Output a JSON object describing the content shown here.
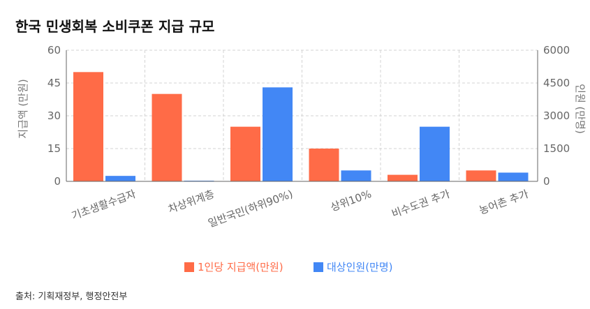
{
  "title": "한국 민생회복 소비쿠폰 지급 규모",
  "source": "출처: 기획재정부, 행정안전부",
  "chart_data": {
    "type": "bar",
    "categories": [
      "기초생활수급자",
      "차상위계층",
      "일반국민(하위90%)",
      "상위10%",
      "비수도권 추가",
      "농어촌 추가"
    ],
    "series": [
      {
        "name": "1인당 지급액(만원)",
        "axis": "left",
        "color": "#ff6b47",
        "values": [
          50,
          40,
          25,
          15,
          3,
          5
        ]
      },
      {
        "name": "대상인원(만명)",
        "axis": "right",
        "color": "#4287f5",
        "values": [
          250,
          30,
          4300,
          500,
          2500,
          400
        ]
      }
    ],
    "y_left": {
      "label": "지급액 (만원)",
      "ticks": [
        0,
        15,
        30,
        45,
        60
      ],
      "range": [
        0,
        60
      ]
    },
    "y_right": {
      "label": "인원 (만명)",
      "ticks": [
        0,
        1500,
        3000,
        4500,
        6000
      ],
      "range": [
        0,
        6000
      ]
    },
    "grid": true,
    "legend": "bottom"
  }
}
